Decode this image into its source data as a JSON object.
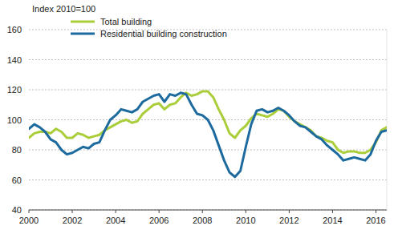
{
  "chart_data": {
    "type": "line",
    "subtitle": "Index 2010=100",
    "x": [
      2000,
      2000.25,
      2000.5,
      2000.75,
      2001,
      2001.25,
      2001.5,
      2001.75,
      2002,
      2002.25,
      2002.5,
      2002.75,
      2003,
      2003.25,
      2003.5,
      2003.75,
      2004,
      2004.25,
      2004.5,
      2004.75,
      2005,
      2005.25,
      2005.5,
      2005.75,
      2006,
      2006.25,
      2006.5,
      2006.75,
      2007,
      2007.25,
      2007.5,
      2007.75,
      2008,
      2008.25,
      2008.5,
      2008.75,
      2009,
      2009.25,
      2009.5,
      2009.75,
      2010,
      2010.25,
      2010.5,
      2010.75,
      2011,
      2011.25,
      2011.5,
      2011.75,
      2012,
      2012.25,
      2012.5,
      2012.75,
      2013,
      2013.25,
      2013.5,
      2013.75,
      2014,
      2014.25,
      2014.5,
      2014.75,
      2015,
      2015.25,
      2015.5,
      2015.75,
      2016,
      2016.25,
      2016.5
    ],
    "series": [
      {
        "name": "Total building",
        "color": "#aacd3a",
        "values": [
          88,
          91,
          92,
          92,
          91,
          94,
          92,
          88,
          88,
          91,
          90,
          88,
          89,
          90,
          93,
          95,
          97,
          99,
          100,
          98,
          99,
          104,
          107,
          110,
          111,
          107,
          110,
          111,
          115,
          118,
          116,
          117,
          119,
          119,
          115,
          107,
          100,
          91,
          88,
          93,
          96,
          101,
          104,
          103,
          102,
          104,
          107,
          106,
          102,
          99,
          97,
          95,
          93,
          89,
          88,
          86,
          85,
          80,
          78,
          79,
          79,
          78,
          78,
          80,
          85,
          93,
          95
        ]
      },
      {
        "name": "Residential building construction",
        "color": "#1d6b9e",
        "values": [
          94,
          97,
          95,
          92,
          87,
          85,
          80,
          77,
          78,
          80,
          82,
          81,
          84,
          85,
          93,
          100,
          103,
          107,
          106,
          105,
          107,
          112,
          114,
          116,
          117,
          112,
          117,
          116,
          118,
          117,
          110,
          104,
          103,
          100,
          93,
          83,
          73,
          65,
          62,
          66,
          82,
          97,
          106,
          107,
          105,
          106,
          108,
          106,
          103,
          99,
          96,
          95,
          92,
          89,
          87,
          83,
          80,
          77,
          73,
          74,
          75,
          74,
          73,
          77,
          86,
          92,
          93
        ]
      }
    ],
    "xlim": [
      2000,
      2016.5
    ],
    "xticks": [
      2000,
      2002,
      2004,
      2006,
      2008,
      2010,
      2012,
      2014,
      2016
    ],
    "ylim": [
      40,
      160
    ],
    "yticks": [
      40,
      60,
      80,
      100,
      120,
      140,
      160
    ],
    "grid": true,
    "legend": "top-left"
  }
}
